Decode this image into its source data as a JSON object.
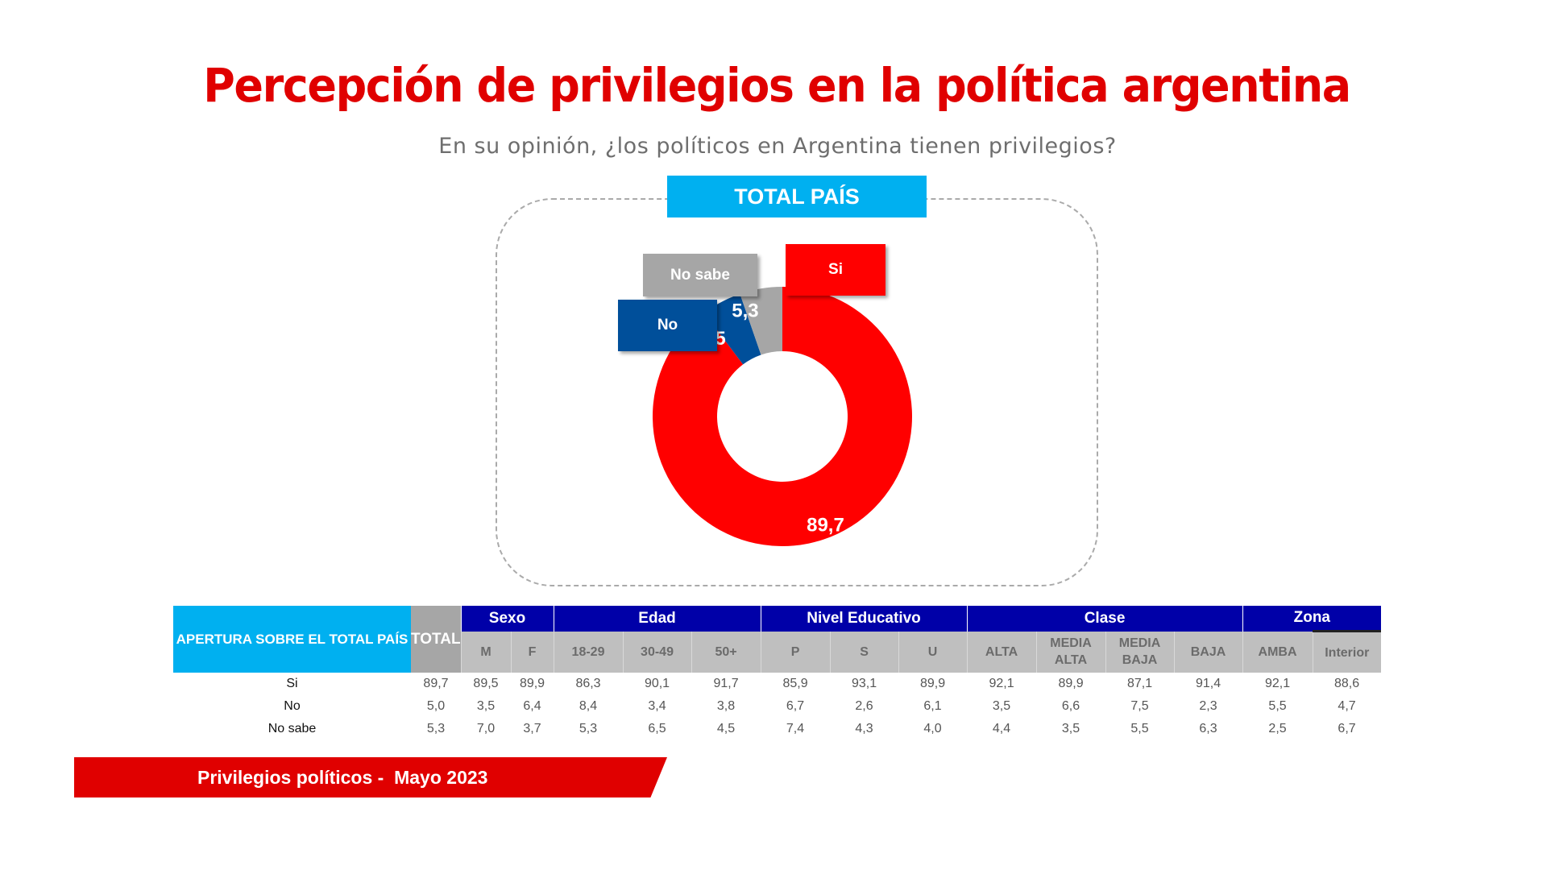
{
  "title": "Percepción de privilegios en la política argentina",
  "subtitle": "En su opinión, ¿los políticos en Argentina tienen privilegios?",
  "badge": "TOTAL PAÍS",
  "colors": {
    "si": "#ff0000",
    "no": "#004f9a",
    "no_sabe": "#a6a6a6",
    "accent_cyan": "#00b0f0",
    "group_header": "#0000a8"
  },
  "chart_data": {
    "type": "pie",
    "subtype": "donut",
    "title": "TOTAL PAÍS",
    "categories": [
      "Si",
      "No",
      "No sabe"
    ],
    "values": [
      89.7,
      5.0,
      5.3
    ],
    "data_labels": [
      "89,7",
      "5",
      "5,3"
    ],
    "legend": [
      "No sabe",
      "Si",
      "No"
    ],
    "start": "top, clockwise (Si first)"
  },
  "table": {
    "corner_label": "APERTURA SOBRE EL TOTAL PAÍS",
    "total_label": "TOTAL",
    "groups": [
      {
        "label": "Sexo",
        "columns": [
          "M",
          "F"
        ]
      },
      {
        "label": "Edad",
        "columns": [
          "18-29",
          "30-49",
          "50+"
        ]
      },
      {
        "label": "Nivel Educativo",
        "columns": [
          "P",
          "S",
          "U"
        ]
      },
      {
        "label": "Clase",
        "columns": [
          "ALTA",
          "MEDIA ALTA",
          "MEDIA BAJA",
          "BAJA"
        ]
      },
      {
        "label": "Zona",
        "columns": [
          "AMBA",
          "Interior"
        ]
      }
    ],
    "rows": [
      {
        "label": "Si",
        "values": [
          "89,7",
          "89,5",
          "89,9",
          "86,3",
          "90,1",
          "91,7",
          "85,9",
          "93,1",
          "89,9",
          "92,1",
          "89,9",
          "87,1",
          "91,4",
          "92,1",
          "88,6"
        ]
      },
      {
        "label": "No",
        "values": [
          "5,0",
          "3,5",
          "6,4",
          "8,4",
          "3,4",
          "3,8",
          "6,7",
          "2,6",
          "6,1",
          "3,5",
          "6,6",
          "7,5",
          "2,3",
          "5,5",
          "4,7"
        ]
      },
      {
        "label": "No sabe",
        "values": [
          "5,3",
          "7,0",
          "3,7",
          "5,3",
          "6,5",
          "4,5",
          "7,4",
          "4,3",
          "4,0",
          "4,4",
          "3,5",
          "5,5",
          "6,3",
          "2,5",
          "6,7"
        ]
      }
    ]
  },
  "footer": "Privilegios políticos -  Mayo 2023"
}
